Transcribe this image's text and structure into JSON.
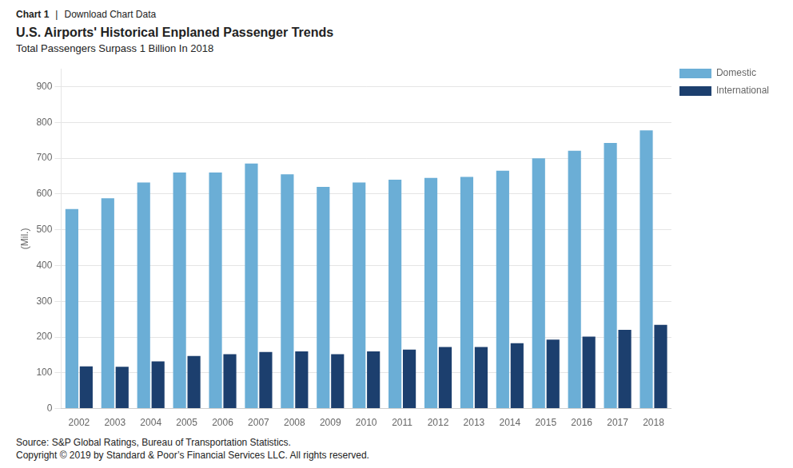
{
  "chart_data": {
    "type": "bar",
    "title": "U.S. Airports' Historical Enplaned Passenger Trends",
    "subtitle": "Total Passengers Surpass 1 Billion In 2018",
    "y_label": "(Mil.)",
    "annotations": [
      "Chart 1",
      "|",
      "Download Chart Data",
      "Source: S&P Global Ratings, Bureau of Transportation Statistics.",
      "Copyright © 2019 by Standard & Poor’s Financial Services LLC. All rights reserved."
    ],
    "categories": [
      "2002",
      "2003",
      "2004",
      "2005",
      "2006",
      "2007",
      "2008",
      "2009",
      "2010",
      "2011",
      "2012",
      "2013",
      "2014",
      "2015",
      "2016",
      "2017",
      "2018"
    ],
    "series": [
      {
        "name": "Domestic",
        "color": "#6baed6",
        "values": [
          558,
          588,
          632,
          660,
          660,
          685,
          655,
          620,
          632,
          640,
          645,
          648,
          665,
          700,
          721,
          743,
          778
        ]
      },
      {
        "name": "International",
        "color": "#1c3f6e",
        "values": [
          118,
          117,
          132,
          147,
          152,
          158,
          160,
          152,
          160,
          165,
          172,
          172,
          183,
          193,
          201,
          220,
          234
        ]
      }
    ],
    "ylim": [
      0,
      950
    ],
    "yticks": [
      0,
      100,
      200,
      300,
      400,
      500,
      600,
      700,
      800,
      900
    ],
    "grid": true,
    "legend": "right"
  }
}
